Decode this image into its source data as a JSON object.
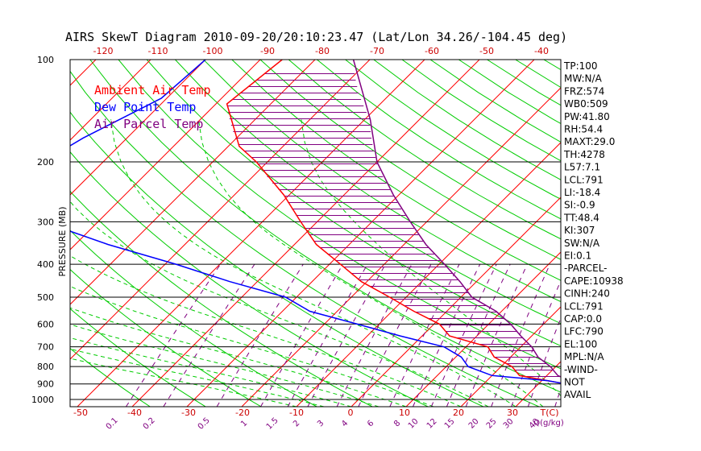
{
  "chart_data": {
    "type": "line",
    "title": "AIRS SkewT Diagram 2010-09-20/20:10:23.47 (Lat/Lon 34.26/-104.45 deg)",
    "ylabel": "PRESSURE (MB)",
    "pressure_ticks": [
      100,
      200,
      300,
      400,
      500,
      600,
      700,
      800,
      900,
      1000
    ],
    "top_temp_ticks": [
      -120,
      -110,
      -100,
      -90,
      -80,
      -70,
      -60,
      -50,
      -40
    ],
    "bottom_temp_ticks": [
      -50,
      -40,
      -30,
      -20,
      -10,
      0,
      10,
      20,
      30
    ],
    "bottom_temp_unit": "T(C)",
    "mixing_ratio_ticks": [
      "0.1",
      "0.2",
      "0.5",
      "1",
      "1.5",
      "2",
      "3",
      "4",
      "6",
      "8",
      "10",
      "12",
      "15",
      "20",
      "25",
      "30",
      "40"
    ],
    "mixing_ratio_unit": "Q(g/kg)",
    "legend": [
      {
        "label": "Ambient Air Temp",
        "color": "#ff0000"
      },
      {
        "label": "Dew Point Temp",
        "color": "#0000ff"
      },
      {
        "label": "Air Parcel Temp",
        "color": "#800080"
      }
    ],
    "series": [
      {
        "name": "Ambient Air Temp",
        "color": "#ff0000",
        "points": [
          [
            100,
            -76
          ],
          [
            135,
            -78
          ],
          [
            180,
            -68
          ],
          [
            200,
            -62
          ],
          [
            250,
            -51
          ],
          [
            300,
            -43
          ],
          [
            350,
            -36
          ],
          [
            400,
            -28
          ],
          [
            450,
            -21
          ],
          [
            500,
            -13
          ],
          [
            550,
            -6
          ],
          [
            600,
            1
          ],
          [
            650,
            5
          ],
          [
            700,
            14
          ],
          [
            750,
            17
          ],
          [
            800,
            22
          ],
          [
            850,
            25
          ],
          [
            880,
            31
          ],
          [
            900,
            35
          ]
        ]
      },
      {
        "name": "Dew Point Temp",
        "color": "#0000ff",
        "points": [
          [
            100,
            -90
          ],
          [
            130,
            -91
          ],
          [
            170,
            -98
          ],
          [
            200,
            -101
          ],
          [
            250,
            -106
          ],
          [
            300,
            -90
          ],
          [
            350,
            -74
          ],
          [
            400,
            -58
          ],
          [
            450,
            -45
          ],
          [
            500,
            -32
          ],
          [
            550,
            -25
          ],
          [
            600,
            -14
          ],
          [
            650,
            -4
          ],
          [
            700,
            6
          ],
          [
            750,
            11
          ],
          [
            800,
            14
          ],
          [
            850,
            20
          ],
          [
            880,
            31
          ],
          [
            900,
            35
          ]
        ]
      },
      {
        "name": "Air Parcel Temp",
        "color": "#800080",
        "points": [
          [
            100,
            -63
          ],
          [
            150,
            -49
          ],
          [
            200,
            -40
          ],
          [
            250,
            -31
          ],
          [
            300,
            -23
          ],
          [
            350,
            -16
          ],
          [
            400,
            -9
          ],
          [
            450,
            -3
          ],
          [
            500,
            2
          ],
          [
            550,
            9
          ],
          [
            600,
            14
          ],
          [
            650,
            18
          ],
          [
            700,
            22
          ],
          [
            750,
            25
          ],
          [
            800,
            29
          ],
          [
            850,
            32
          ],
          [
            880,
            35
          ],
          [
            900,
            35
          ]
        ]
      }
    ],
    "cape_shading": {
      "p_from": 110,
      "p_to": 875,
      "color": "#800080"
    },
    "indices": [
      "TP:100",
      "MW:N/A",
      "FRZ:574",
      "WB0:509",
      "PW:41.80",
      "RH:54.4",
      "MAXT:29.0",
      "TH:4278",
      "L57:7.1",
      "LCL:791",
      "LI:-18.4",
      "SI:-0.9",
      "TT:48.4",
      "KI:307",
      "SW:N/A",
      "EI:0.1",
      "-PARCEL-",
      "CAPE:10938",
      "CINH:240",
      "LCL:791",
      "CAP:0.0",
      "LFC:790",
      "EL:100",
      "MPL:N/A",
      "-WIND-",
      "NOT",
      "AVAIL"
    ]
  }
}
